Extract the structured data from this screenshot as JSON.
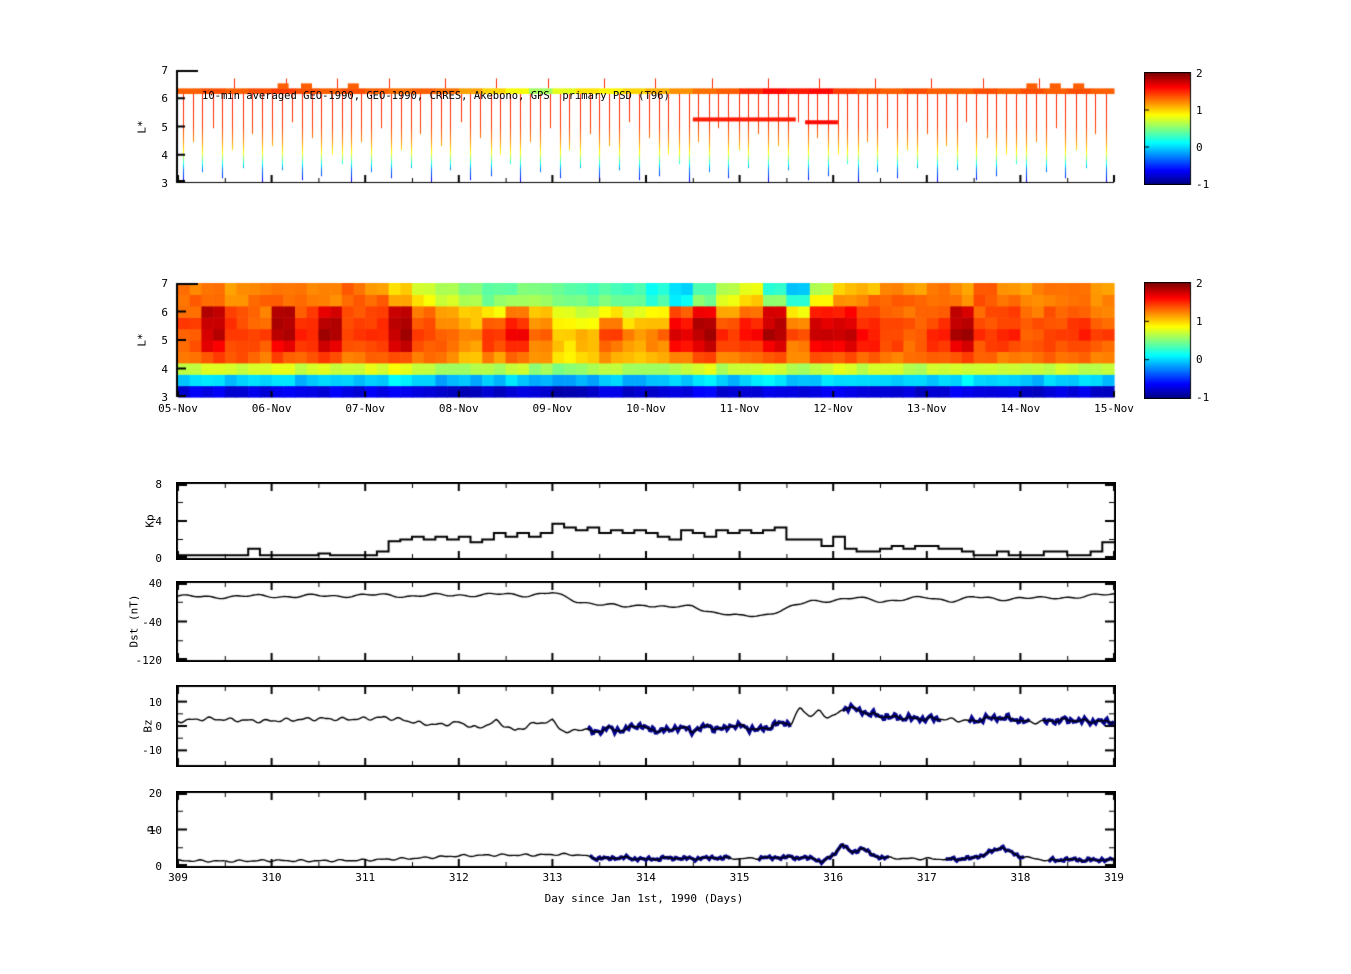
{
  "figure": {
    "title": "10-min averaged GEO-1990, GEO-1990, CRRES, Akebono, GPS  primary PSD (T96)",
    "background": "#ffffff"
  },
  "x_axis": {
    "ticks": [
      309,
      310,
      311,
      312,
      313,
      314,
      315,
      316,
      317,
      318,
      319
    ],
    "label": "Day since Jan 1st, 1990 (Days)"
  },
  "chart_data": [
    {
      "id": "psd-spikes",
      "type": "heatmap",
      "title": "10-min averaged GEO-1990, GEO-1990, CRRES, Akebono, GPS  primary PSD (T96)",
      "ylabel": "L*",
      "ylim": [
        3,
        7
      ],
      "yticks": [
        7,
        6,
        5,
        4,
        3
      ],
      "xlim_days": [
        309,
        319
      ],
      "colorbar": {
        "range": [
          -1,
          2
        ],
        "ticks": [
          2,
          1,
          0,
          -1
        ]
      },
      "band": {
        "L_low": 6.15,
        "L_high": 6.35,
        "values": [
          1.35,
          1.4,
          1.35,
          1.4,
          1.45,
          1.4,
          1.35,
          1.4,
          1.35,
          1.3,
          1.35,
          1.3,
          1.15,
          1.0,
          0.85,
          0.6,
          0.8,
          0.95,
          0.9,
          1.0,
          1.1,
          1.2,
          1.3,
          1.35,
          1.5,
          1.6,
          1.55,
          1.6,
          1.45,
          1.4,
          1.35,
          1.4,
          1.35,
          1.35,
          1.4,
          1.35,
          1.4,
          1.35,
          1.4,
          1.35
        ]
      },
      "band_bumps": [
        4,
        5,
        7,
        36,
        37,
        38
      ],
      "tall_spikes": [
        0.6,
        1.15,
        1.7,
        2.25,
        2.85,
        3.4,
        3.95,
        4.55,
        5.1,
        5.7,
        6.3,
        6.85,
        7.45,
        8.05,
        8.6,
        9.2
      ],
      "red_patches": [
        {
          "x0": 5.5,
          "x1": 6.6,
          "L": 5.25,
          "v": 1.55
        },
        {
          "x0": 6.7,
          "x1": 7.05,
          "L": 5.15,
          "v": 1.6
        }
      ],
      "spike_color_profile": [
        [
          3,
          -0.75
        ],
        [
          3.55,
          -0.2
        ],
        [
          3.8,
          0.35
        ],
        [
          4.1,
          0.85
        ],
        [
          4.5,
          1.2
        ],
        [
          5,
          1.45
        ],
        [
          6.2,
          1.55
        ]
      ],
      "spikes_x": [
        0.05,
        0.16,
        0.26,
        0.37,
        0.47,
        0.58,
        0.69,
        0.79,
        0.9,
        1.0,
        1.11,
        1.22,
        1.32,
        1.43,
        1.53,
        1.64,
        1.75,
        1.85,
        1.96,
        2.06,
        2.17,
        2.28,
        2.38,
        2.49,
        2.59,
        2.7,
        2.81,
        2.91,
        3.02,
        3.12,
        3.23,
        3.34,
        3.44,
        3.55,
        3.65,
        3.76,
        3.87,
        3.97,
        4.08,
        4.18,
        4.29,
        4.4,
        4.5,
        4.61,
        4.71,
        4.82,
        4.93,
        5.03,
        5.14,
        5.24,
        5.35,
        5.46,
        5.56,
        5.67,
        5.77,
        5.88,
        5.99,
        6.09,
        6.2,
        6.3,
        6.41,
        6.52,
        6.62,
        6.73,
        6.83,
        6.94,
        7.05,
        7.15,
        7.26,
        7.36,
        7.47,
        7.58,
        7.68,
        7.79,
        7.89,
        8.0,
        8.11,
        8.21,
        8.32,
        8.42,
        8.53,
        8.64,
        8.74,
        8.85,
        8.95,
        9.06,
        9.17,
        9.27,
        9.38,
        9.48,
        9.59,
        9.7,
        9.8,
        9.91
      ],
      "spikes_bottom": [
        3.1,
        4.5,
        3.4,
        5.0,
        3.2,
        4.2,
        3.6,
        4.8,
        3.05,
        4.35,
        3.5,
        5.2,
        3.15,
        4.6,
        3.3,
        4.05,
        3.7,
        3.1,
        4.5,
        3.4,
        5.0,
        3.2,
        4.2,
        3.6,
        4.8,
        3.05,
        4.35,
        3.5,
        5.2,
        3.15,
        4.6,
        3.3,
        4.05,
        3.7,
        3.1,
        4.5,
        3.4,
        5.0,
        3.2,
        4.2,
        3.6,
        4.8,
        3.05,
        4.35,
        3.5,
        5.2,
        3.15,
        4.6,
        3.3,
        4.05,
        3.7,
        3.1,
        4.5,
        3.4,
        5.0,
        3.2,
        4.2,
        3.6,
        4.8,
        3.05,
        4.35,
        3.5,
        5.2,
        3.15,
        4.6,
        3.3,
        4.05,
        3.7,
        3.1,
        4.5,
        3.4,
        5.0,
        3.2,
        4.2,
        3.6,
        4.8,
        3.05,
        4.35,
        3.5,
        5.2,
        3.15,
        4.6,
        3.3,
        4.05,
        3.7,
        3.1,
        4.5,
        3.4,
        5.0,
        3.2,
        4.2,
        3.6,
        4.8,
        3.05
      ]
    },
    {
      "id": "psd-map",
      "type": "heatmap",
      "ylabel": "L*",
      "ylim": [
        3,
        7
      ],
      "yticks": [
        7,
        6,
        5,
        4,
        3
      ],
      "xticklabels": [
        "05-Nov",
        "06-Nov",
        "07-Nov",
        "08-Nov",
        "09-Nov",
        "10-Nov",
        "11-Nov",
        "12-Nov",
        "13-Nov",
        "14-Nov",
        "15-Nov"
      ],
      "colorbar": {
        "range": [
          -1,
          2
        ],
        "ticks": [
          2,
          1,
          0,
          -1
        ]
      },
      "grid_rows_bottom_to_top": [
        [
          -0.7,
          -0.65,
          -0.75,
          -0.7,
          -0.65,
          -0.75,
          -0.7,
          -0.75,
          -0.7,
          -0.65,
          -0.75,
          -0.8,
          -0.8,
          -0.75,
          -0.7,
          -0.8,
          -0.85,
          -0.8,
          -0.75,
          -0.8,
          -0.8,
          -0.7,
          -0.65,
          -0.75,
          -0.7,
          -0.65,
          -0.75,
          -0.7,
          -0.65,
          -0.7,
          -0.7,
          -0.75,
          -0.7,
          -0.65,
          -0.7,
          -0.7,
          -0.75,
          -0.7,
          -0.7,
          -0.75
        ],
        [
          0.0,
          0.05,
          -0.05,
          0.0,
          0.05,
          -0.05,
          0.0,
          -0.05,
          0.0,
          0.05,
          -0.05,
          -0.1,
          -0.1,
          -0.05,
          0.0,
          -0.1,
          -0.15,
          -0.1,
          -0.05,
          -0.1,
          -0.1,
          0.0,
          0.05,
          -0.05,
          0.0,
          0.05,
          -0.05,
          0.0,
          0.05,
          0.0,
          0.0,
          -0.05,
          0.0,
          0.05,
          0.0,
          0.0,
          -0.05,
          0.0,
          0.0,
          -0.05
        ],
        [
          0.75,
          0.8,
          0.7,
          0.75,
          0.8,
          0.7,
          0.75,
          0.7,
          0.75,
          0.8,
          0.7,
          0.65,
          0.6,
          0.65,
          0.7,
          0.6,
          0.55,
          0.6,
          0.65,
          0.6,
          0.6,
          0.7,
          0.75,
          0.65,
          0.7,
          0.75,
          0.65,
          0.7,
          0.75,
          0.7,
          0.7,
          0.65,
          0.7,
          0.75,
          0.7,
          0.7,
          0.65,
          0.7,
          0.7,
          0.65
        ],
        [
          1.3,
          1.4,
          1.35,
          1.3,
          1.4,
          1.35,
          1.45,
          1.3,
          1.35,
          1.45,
          1.3,
          1.25,
          1.1,
          1.2,
          1.3,
          1.15,
          0.95,
          1.0,
          1.15,
          1.05,
          1.1,
          1.3,
          1.45,
          1.25,
          1.3,
          1.4,
          1.2,
          1.35,
          1.4,
          1.3,
          1.3,
          1.25,
          1.3,
          1.4,
          1.3,
          1.3,
          1.25,
          1.3,
          1.3,
          1.25
        ],
        [
          1.35,
          1.7,
          1.45,
          1.35,
          1.7,
          1.45,
          1.75,
          1.4,
          1.45,
          1.75,
          1.35,
          1.3,
          1.15,
          1.4,
          1.5,
          1.25,
          1.0,
          1.05,
          1.3,
          1.15,
          1.2,
          1.6,
          1.75,
          1.4,
          1.5,
          1.7,
          1.3,
          1.65,
          1.7,
          1.5,
          1.4,
          1.35,
          1.45,
          1.7,
          1.4,
          1.45,
          1.35,
          1.4,
          1.45,
          1.35
        ],
        [
          1.4,
          1.8,
          1.5,
          1.4,
          1.8,
          1.5,
          1.85,
          1.45,
          1.5,
          1.85,
          1.4,
          1.3,
          1.2,
          1.5,
          1.6,
          1.3,
          1.0,
          1.1,
          1.4,
          1.2,
          1.3,
          1.75,
          1.85,
          1.5,
          1.6,
          1.85,
          1.4,
          1.8,
          1.8,
          1.6,
          1.45,
          1.4,
          1.5,
          1.85,
          1.45,
          1.5,
          1.4,
          1.45,
          1.5,
          1.4
        ],
        [
          1.4,
          1.85,
          1.45,
          1.35,
          1.85,
          1.45,
          1.8,
          1.4,
          1.45,
          1.8,
          1.35,
          1.25,
          1.1,
          1.3,
          1.5,
          1.2,
          0.9,
          0.9,
          1.2,
          1.0,
          1.1,
          1.6,
          1.8,
          1.4,
          1.5,
          1.8,
          1.2,
          1.7,
          1.75,
          1.5,
          1.4,
          1.35,
          1.45,
          1.8,
          1.4,
          1.45,
          1.35,
          1.4,
          1.45,
          1.35
        ],
        [
          1.35,
          1.8,
          1.4,
          1.3,
          1.8,
          1.4,
          1.75,
          1.35,
          1.4,
          1.75,
          1.3,
          1.2,
          1.0,
          0.9,
          1.3,
          1.1,
          0.8,
          0.7,
          0.9,
          0.8,
          0.9,
          1.4,
          1.7,
          1.2,
          1.3,
          1.7,
          0.9,
          1.5,
          1.6,
          1.4,
          1.35,
          1.3,
          1.4,
          1.75,
          1.35,
          1.4,
          1.3,
          1.35,
          1.4,
          1.3
        ],
        [
          1.3,
          1.35,
          1.25,
          1.3,
          1.35,
          1.3,
          1.25,
          1.35,
          1.3,
          1.1,
          0.9,
          0.7,
          0.6,
          0.5,
          0.55,
          0.6,
          0.5,
          0.45,
          0.5,
          0.4,
          0.3,
          0.1,
          0.5,
          0.8,
          1.0,
          0.5,
          0.2,
          0.9,
          1.2,
          1.3,
          1.35,
          1.3,
          1.3,
          1.25,
          1.35,
          1.3,
          1.25,
          1.3,
          1.35,
          1.25
        ],
        [
          1.25,
          1.3,
          1.2,
          1.25,
          1.3,
          1.25,
          1.2,
          1.3,
          1.2,
          1.0,
          0.8,
          0.6,
          0.5,
          0.4,
          0.45,
          0.5,
          0.4,
          0.3,
          0.35,
          0.3,
          0.2,
          0.0,
          0.3,
          0.6,
          0.8,
          0.3,
          -0.1,
          0.7,
          1.0,
          1.1,
          1.2,
          1.2,
          1.25,
          1.2,
          1.3,
          1.25,
          1.2,
          1.25,
          1.3,
          1.2
        ]
      ]
    },
    {
      "id": "kp",
      "type": "line-step",
      "ylabel": "Kp",
      "ylim": [
        0,
        8
      ],
      "yticks": [
        8,
        4,
        0
      ],
      "yminor": [
        6,
        2
      ],
      "x_start": 309,
      "x_step": 0.125,
      "values": [
        0.3,
        0.3,
        0.3,
        0.3,
        0.3,
        0.3,
        1.0,
        0.3,
        0.3,
        0.3,
        0.3,
        0.3,
        0.5,
        0.3,
        0.3,
        0.3,
        0.3,
        0.7,
        1.8,
        2.0,
        2.3,
        2.0,
        2.3,
        2.0,
        2.3,
        1.7,
        2.0,
        2.7,
        2.3,
        2.7,
        2.3,
        2.7,
        3.7,
        3.3,
        3.0,
        3.3,
        2.7,
        3.0,
        2.7,
        3.0,
        2.7,
        2.3,
        2.0,
        3.0,
        2.7,
        2.3,
        3.0,
        2.7,
        3.0,
        2.7,
        3.0,
        3.3,
        2.0,
        2.0,
        2.0,
        1.3,
        2.3,
        1.0,
        0.7,
        0.7,
        1.0,
        1.3,
        1.0,
        1.3,
        1.3,
        1.0,
        1.0,
        0.7,
        0.3,
        0.3,
        0.7,
        0.3,
        0.3,
        0.3,
        0.7,
        0.7,
        0.3,
        0.3,
        0.7,
        1.7
      ]
    },
    {
      "id": "dst",
      "type": "line",
      "ylabel": "Dst (nT)",
      "ylim": [
        -120,
        40
      ],
      "yticks": [
        40,
        -40,
        -120
      ],
      "yminor": [
        0,
        -80
      ],
      "x_start": 309,
      "x_step": 0.25,
      "values": [
        12,
        11,
        12,
        12,
        13,
        12,
        13,
        14,
        14,
        15,
        13,
        14,
        16,
        14,
        17,
        15,
        19,
        3,
        -4,
        -10,
        -4,
        -12,
        -8,
        -22,
        -30,
        -26,
        -14,
        2,
        5,
        8,
        3,
        6,
        9,
        4,
        10,
        6,
        10,
        7,
        11,
        13,
        16
      ]
    },
    {
      "id": "bz",
      "type": "line",
      "ylabel": "Bz",
      "ylim": [
        -16,
        16
      ],
      "yticks": [
        10,
        0,
        -10
      ],
      "yminor": [
        5,
        -5
      ],
      "x": [
        309,
        309.3,
        309.6,
        309.9,
        310.2,
        310.5,
        310.8,
        311.0,
        311.2,
        311.4,
        311.6,
        311.8,
        312.0,
        312.2,
        312.4,
        312.6,
        312.8,
        313.0,
        313.15,
        313.3,
        313.45,
        313.6,
        313.75,
        313.9,
        314.05,
        314.2,
        314.35,
        314.5,
        314.65,
        314.8,
        314.95,
        315.1,
        315.25,
        315.4,
        315.55,
        315.65,
        315.75,
        315.85,
        315.95,
        316.05,
        316.15,
        316.3,
        316.5,
        316.7,
        316.9,
        317.1,
        317.3,
        317.5,
        317.7,
        317.9,
        318.1,
        318.3,
        318.5,
        318.7,
        318.9,
        319.0
      ],
      "y": [
        2,
        3,
        2.5,
        2,
        2.5,
        3,
        2.8,
        3,
        3.5,
        2.5,
        1,
        0.5,
        1.5,
        -1,
        2,
        -2,
        1,
        2,
        -3,
        -1,
        -2.5,
        -1,
        -2,
        0.5,
        -1.5,
        -2,
        -0.5,
        -2,
        0,
        -1.5,
        0.5,
        -1,
        -1.5,
        1,
        1,
        7.5,
        4,
        6,
        3.5,
        5,
        8,
        6,
        4,
        3.5,
        3,
        3,
        2.5,
        2,
        3.5,
        3,
        1.5,
        2,
        2.5,
        2,
        1.8,
        2
      ],
      "highlight_color": "#00008b",
      "highlight_segments": [
        [
          313.38,
          315.55
        ],
        [
          316.1,
          317.15
        ],
        [
          317.45,
          318.1
        ],
        [
          318.25,
          319.0
        ]
      ]
    },
    {
      "id": "p",
      "type": "line",
      "ylabel": "P",
      "ylim": [
        0,
        20
      ],
      "yticks": [
        20,
        10,
        0
      ],
      "yminor": [
        15,
        5
      ],
      "x": [
        309,
        309.5,
        310,
        310.5,
        311,
        311.3,
        311.6,
        312,
        312.4,
        312.8,
        313.1,
        313.3,
        313.5,
        313.75,
        314,
        314.25,
        314.5,
        314.75,
        315,
        315.25,
        315.5,
        315.75,
        315.9,
        316.0,
        316.1,
        316.2,
        316.3,
        316.45,
        316.6,
        316.8,
        317,
        317.25,
        317.5,
        317.65,
        317.8,
        317.95,
        318.1,
        318.3,
        318.5,
        318.75,
        319
      ],
      "y": [
        1.5,
        1.3,
        1.5,
        1.4,
        1.6,
        1.9,
        2.2,
        2.8,
        3.0,
        3.0,
        3.2,
        3.0,
        2.0,
        2.3,
        1.8,
        2.2,
        2.0,
        2.3,
        2.0,
        2.2,
        2.4,
        2.2,
        1.2,
        3.0,
        6.0,
        3.5,
        5.0,
        2.6,
        2.2,
        2.0,
        2.0,
        1.8,
        2.2,
        3.5,
        5.2,
        3.0,
        2.2,
        1.5,
        1.8,
        1.6,
        1.8
      ],
      "highlight_color": "#00008b",
      "highlight_segments": [
        [
          313.4,
          314.9
        ],
        [
          315.2,
          316.6
        ],
        [
          317.2,
          318.05
        ],
        [
          318.3,
          319.0
        ]
      ]
    }
  ]
}
